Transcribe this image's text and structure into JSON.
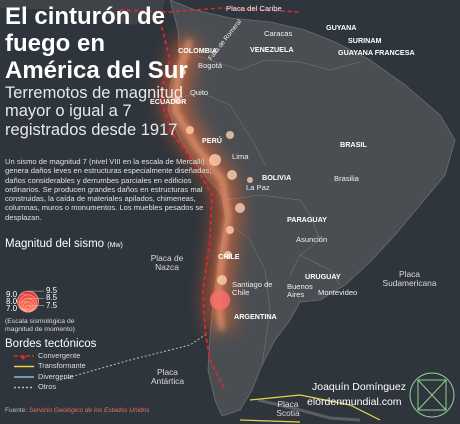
{
  "header": {
    "title": "El cinturón de fuego en América del Sur",
    "subtitle": "Terremotos de magnitud mayor o igual a 7 registrados desde 1917",
    "description": "Un sismo de magnitud 7 (nivel VIII en la escala de Mercalli) genera daños leves en estructuras especialmente diseñadas; daños considerables y derrumbes parciales en edificios ordinarios. Se producen grandes daños en estructuras mal construidas, la caída de materiales apilados, chimeneas, columnas, muros o monumentos. Los muebles pesados se desplazan."
  },
  "legend": {
    "magnitude_title": "Magnitud del sismo",
    "magnitude_unit": "(Mw)",
    "magnitudes": [
      9.5,
      {
        "value": 9,
        "label": "9.0"
      },
      8.5,
      {
        "value": 8,
        "label": "8.0"
      },
      7.5,
      {
        "value": 7,
        "label": "7.0"
      }
    ],
    "scale_note": "(Escala sismológica de magnitud de momento)",
    "borders_title": "Bordes tectónicos",
    "borders": [
      {
        "label": "Convergente",
        "color": "#e3262f"
      },
      {
        "label": "Transformante",
        "color": "#e8d34a"
      },
      {
        "label": "Divergente",
        "color": "#8fb8e0"
      },
      {
        "label": "Otros",
        "color": "#bdbdbd"
      }
    ]
  },
  "map_labels": {
    "plates": [
      "Placa del Caribe",
      "Placa de Nazca",
      "Placa Sudamericana",
      "Placa Antártica",
      "Placa Scotia"
    ],
    "countries": [
      "COLOMBIA",
      "VENEZUELA",
      "GUYANA",
      "SURINAM",
      "GUAYANA FRANCESA",
      "ECUADOR",
      "PERÚ",
      "BRASIL",
      "BOLIVIA",
      "PARAGUAY",
      "CHILE",
      "ARGENTINA",
      "URUGUAY"
    ],
    "cities": [
      "Caracas",
      "Bogotá",
      "Quito",
      "Lima",
      "Brasilia",
      "La Paz",
      "Asunción",
      "Santiago de Chile",
      "Buenos Aires",
      "Montevideo"
    ],
    "faults": [
      "Falla de Romeral"
    ]
  },
  "footer": {
    "source_label": "Fuente:",
    "source": "Servicio Geológico de los Estados Unidos",
    "author": "Joaquín Domínguez",
    "site": "elordenmundial.com"
  }
}
